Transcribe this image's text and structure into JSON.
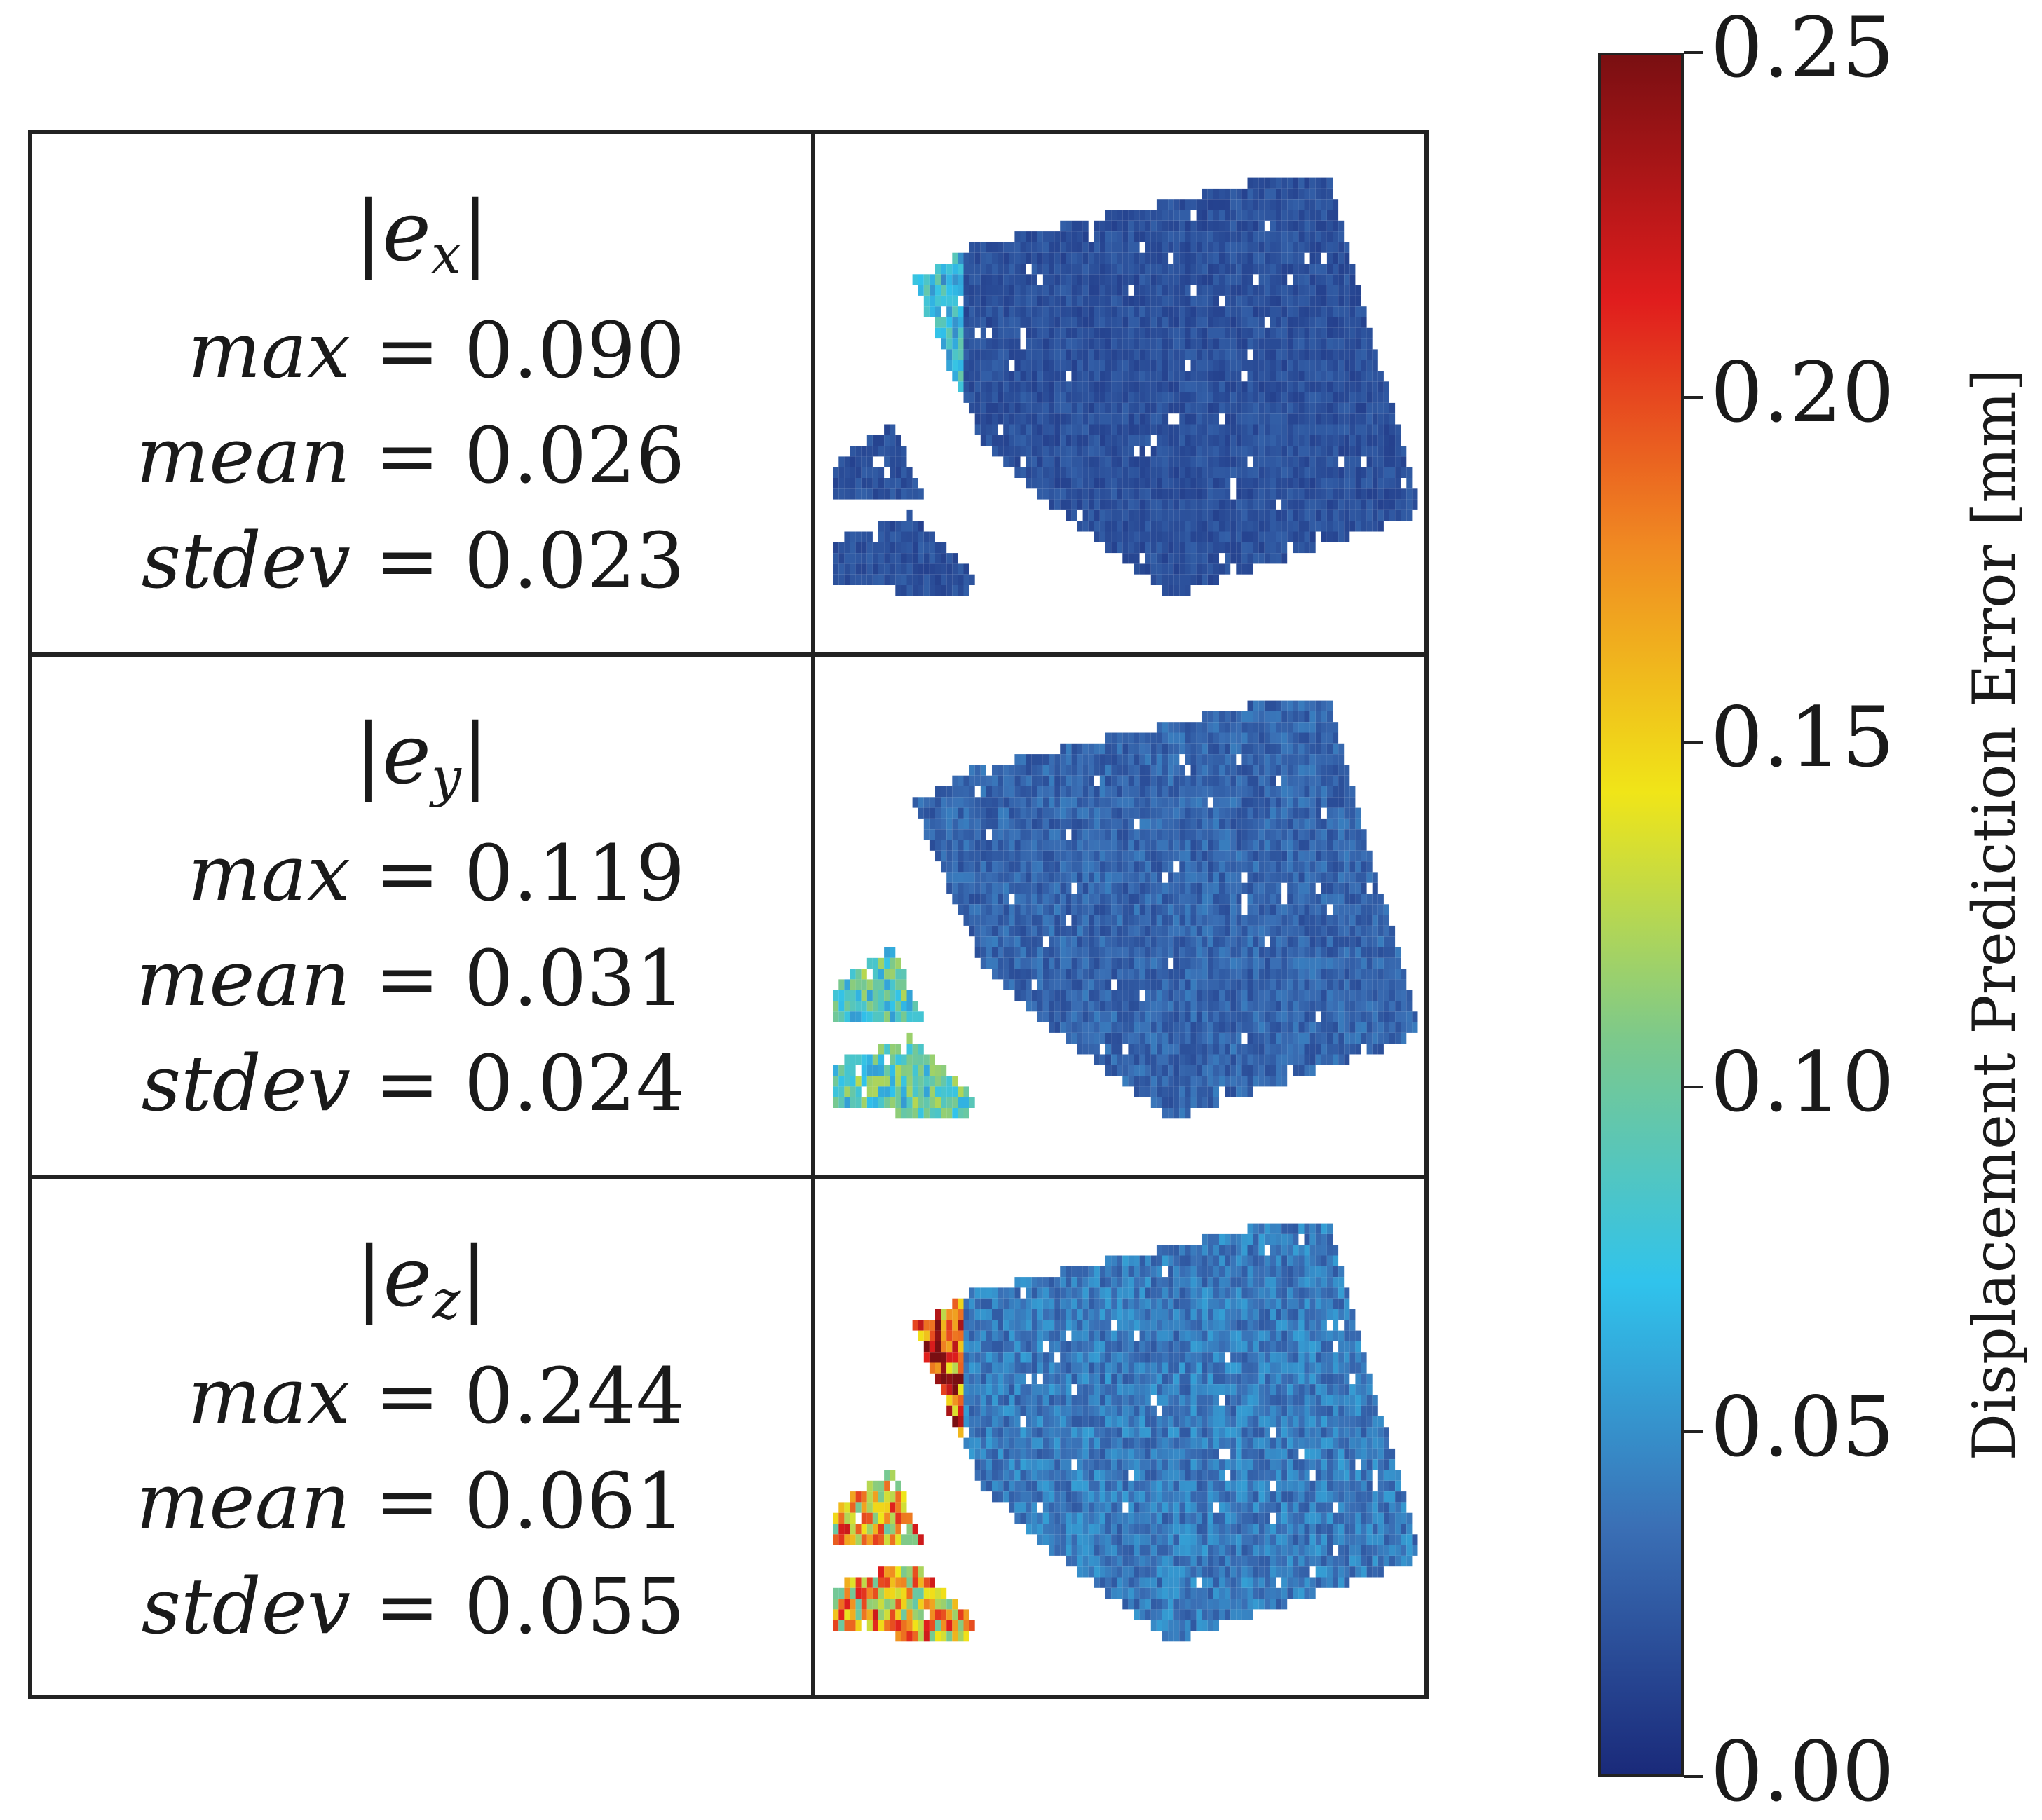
{
  "chart_data": {
    "type": "heatmap",
    "title": "",
    "colorbar": {
      "label": "Displacement Prediction Error [mm]",
      "range": [
        0.0,
        0.25
      ],
      "ticks": [
        "0.00",
        "0.05",
        "0.10",
        "0.15",
        "0.20",
        "0.25"
      ],
      "colormap": [
        "#1a2a7a",
        "#3a6fb5",
        "#30c3ec",
        "#7dc98a",
        "#f0e518",
        "#f08a22",
        "#e01d1d",
        "#7a0f12"
      ]
    },
    "panels": [
      {
        "name": "e_x",
        "label_base": "e",
        "label_sub": "x",
        "stats": [
          {
            "key": "max",
            "value": "0.090"
          },
          {
            "key": "mean",
            "value": "0.026"
          },
          {
            "key": "stdev",
            "value": "0.023"
          }
        ],
        "zones": [
          {
            "region": "body",
            "value": 0.02
          },
          {
            "region": "upper-left",
            "value": 0.07
          },
          {
            "region": "lower-left-tail",
            "value": 0.02
          }
        ]
      },
      {
        "name": "e_y",
        "label_base": "e",
        "label_sub": "y",
        "stats": [
          {
            "key": "max",
            "value": "0.119"
          },
          {
            "key": "mean",
            "value": "0.031"
          },
          {
            "key": "stdev",
            "value": "0.024"
          }
        ],
        "zones": [
          {
            "region": "body",
            "value": 0.03
          },
          {
            "region": "upper-left",
            "value": 0.03
          },
          {
            "region": "lower-left-tail",
            "value": 0.09
          }
        ]
      },
      {
        "name": "e_z",
        "label_base": "e",
        "label_sub": "z",
        "stats": [
          {
            "key": "max",
            "value": "0.244"
          },
          {
            "key": "mean",
            "value": "0.061"
          },
          {
            "key": "stdev",
            "value": "0.055"
          }
        ],
        "zones": [
          {
            "region": "body",
            "value": 0.04
          },
          {
            "region": "upper-left",
            "value": 0.2
          },
          {
            "region": "lower-left-tail",
            "value": 0.16
          }
        ]
      }
    ]
  }
}
